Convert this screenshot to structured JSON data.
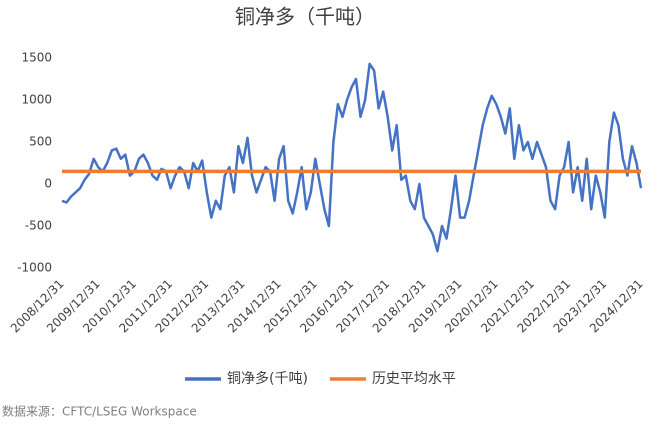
{
  "chart_data": {
    "type": "line",
    "title": "铜净多（千吨）",
    "categories": [
      "2008/12/31",
      null,
      null,
      null,
      null,
      null,
      null,
      null,
      "2009/12/31",
      null,
      null,
      null,
      null,
      null,
      null,
      null,
      "2010/12/31",
      null,
      null,
      null,
      null,
      null,
      null,
      null,
      "2011/12/31",
      null,
      null,
      null,
      null,
      null,
      null,
      null,
      "2012/12/31",
      null,
      null,
      null,
      null,
      null,
      null,
      null,
      "2013/12/31",
      null,
      null,
      null,
      null,
      null,
      null,
      null,
      "2014/12/31",
      null,
      null,
      null,
      null,
      null,
      null,
      null,
      "2015/12/31",
      null,
      null,
      null,
      null,
      null,
      null,
      null,
      "2016/12/31",
      null,
      null,
      null,
      null,
      null,
      null,
      null,
      "2017/12/31",
      null,
      null,
      null,
      null,
      null,
      null,
      null,
      "2018/12/31",
      null,
      null,
      null,
      null,
      null,
      null,
      null,
      "2019/12/31",
      null,
      null,
      null,
      null,
      null,
      null,
      null,
      "2020/12/31",
      null,
      null,
      null,
      null,
      null,
      null,
      null,
      "2021/12/31",
      null,
      null,
      null,
      null,
      null,
      null,
      null,
      "2022/12/31",
      null,
      null,
      null,
      null,
      null,
      null,
      null,
      "2023/12/31",
      null,
      null,
      null,
      null,
      null,
      null,
      null,
      "2024/12/31"
    ],
    "series": [
      {
        "name": "铜净多(千吨)",
        "color": "#4472c4",
        "values": [
          -200,
          -220,
          -150,
          -100,
          -50,
          50,
          120,
          300,
          200,
          150,
          250,
          400,
          420,
          300,
          350,
          100,
          150,
          300,
          350,
          250,
          100,
          50,
          180,
          150,
          -50,
          100,
          200,
          150,
          -50,
          250,
          150,
          280,
          -100,
          -400,
          -200,
          -300,
          100,
          200,
          -100,
          450,
          250,
          550,
          100,
          -100,
          50,
          200,
          150,
          -200,
          300,
          450,
          -200,
          -350,
          -100,
          200,
          -300,
          -100,
          300,
          0,
          -300,
          -500,
          500,
          950,
          800,
          1000,
          1150,
          1250,
          800,
          1000,
          1430,
          1350,
          900,
          1100,
          800,
          400,
          700,
          50,
          100,
          -200,
          -300,
          0,
          -400,
          -500,
          -600,
          -800,
          -500,
          -650,
          -300,
          100,
          -400,
          -400,
          -200,
          100,
          400,
          700,
          900,
          1050,
          950,
          800,
          600,
          900,
          300,
          700,
          400,
          500,
          300,
          500,
          350,
          200,
          -200,
          -300,
          100,
          200,
          500,
          -100,
          200,
          -200,
          300,
          -300,
          100,
          -100,
          -400,
          500,
          850,
          700,
          300,
          100,
          450,
          250,
          -50
        ]
      }
    ],
    "reference_line": {
      "name": "历史平均水平",
      "value": 150,
      "color": "#ed7d31"
    },
    "ylim": [
      -1000,
      1500
    ],
    "yticks": [
      -1000,
      -500,
      0,
      500,
      1000,
      1500
    ],
    "source": "数据来源：CFTC/LSEG Workspace"
  }
}
